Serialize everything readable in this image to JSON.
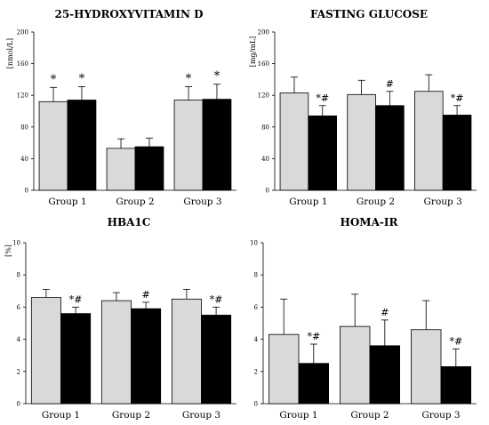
{
  "chart_data": [
    {
      "type": "bar",
      "title": "25-HYDROXYVITAMIN D",
      "ylabel": "[nmol/L]",
      "ylim": [
        0,
        200
      ],
      "yticks": [
        0,
        40,
        80,
        120,
        160,
        200
      ],
      "categories": [
        "Group 1",
        "Group 2",
        "Group 3"
      ],
      "series": [
        {
          "color": "#d9d9d9",
          "values": [
            112,
            53,
            114
          ],
          "errors": [
            18,
            12,
            17
          ]
        },
        {
          "color": "#000000",
          "values": [
            114,
            55,
            115
          ],
          "errors": [
            17,
            11,
            19
          ]
        }
      ],
      "annotations": [
        {
          "category": 0,
          "series": 0,
          "text": "*"
        },
        {
          "category": 0,
          "series": 1,
          "text": "*"
        },
        {
          "category": 2,
          "series": 0,
          "text": "*"
        },
        {
          "category": 2,
          "series": 1,
          "text": "*"
        }
      ]
    },
    {
      "type": "bar",
      "title": "FASTING GLUCOSE",
      "ylabel": "[mg/mL]",
      "ylim": [
        0,
        200
      ],
      "yticks": [
        0,
        40,
        80,
        120,
        160,
        200
      ],
      "categories": [
        "Group 1",
        "Group 2",
        "Group 3"
      ],
      "series": [
        {
          "color": "#d9d9d9",
          "values": [
            123,
            121,
            125
          ],
          "errors": [
            20,
            18,
            21
          ]
        },
        {
          "color": "#000000",
          "values": [
            94,
            107,
            95
          ],
          "errors": [
            13,
            18,
            12
          ]
        }
      ],
      "annotations": [
        {
          "category": 0,
          "series": 1,
          "text": "*#"
        },
        {
          "category": 1,
          "series": 1,
          "text": "#"
        },
        {
          "category": 2,
          "series": 1,
          "text": "*#"
        }
      ]
    },
    {
      "type": "bar",
      "title": "HBA1C",
      "ylabel": "[%]",
      "ylim": [
        0,
        10
      ],
      "yticks": [
        0,
        2,
        4,
        6,
        8,
        10
      ],
      "categories": [
        "Group 1",
        "Group 2",
        "Group 3"
      ],
      "series": [
        {
          "color": "#d9d9d9",
          "values": [
            6.6,
            6.4,
            6.5
          ],
          "errors": [
            0.5,
            0.5,
            0.6
          ]
        },
        {
          "color": "#000000",
          "values": [
            5.6,
            5.9,
            5.5
          ],
          "errors": [
            0.4,
            0.4,
            0.5
          ]
        }
      ],
      "annotations": [
        {
          "category": 0,
          "series": 1,
          "text": "*#"
        },
        {
          "category": 1,
          "series": 1,
          "text": "#"
        },
        {
          "category": 2,
          "series": 1,
          "text": "*#"
        }
      ]
    },
    {
      "type": "bar",
      "title": "HOMA-IR",
      "ylabel": "",
      "ylim": [
        0,
        10
      ],
      "yticks": [
        0,
        2,
        4,
        6,
        8,
        10
      ],
      "categories": [
        "Group 1",
        "Group 2",
        "Group 3"
      ],
      "series": [
        {
          "color": "#d9d9d9",
          "values": [
            4.3,
            4.8,
            4.6
          ],
          "errors": [
            2.2,
            2.0,
            1.8
          ]
        },
        {
          "color": "#000000",
          "values": [
            2.5,
            3.6,
            2.3
          ],
          "errors": [
            1.2,
            1.6,
            1.1
          ]
        }
      ],
      "annotations": [
        {
          "category": 0,
          "series": 1,
          "text": "*#"
        },
        {
          "category": 1,
          "series": 1,
          "text": "#"
        },
        {
          "category": 2,
          "series": 1,
          "text": "*#"
        }
      ]
    }
  ]
}
